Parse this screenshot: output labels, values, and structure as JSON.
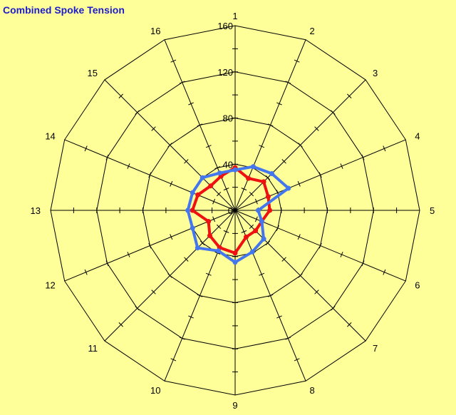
{
  "chart_data": {
    "type": "radar",
    "title": "Combined  Spoke Tension",
    "categories": [
      "1",
      "2",
      "3",
      "4",
      "5",
      "6",
      "7",
      "8",
      "9",
      "10",
      "11",
      "12",
      "13",
      "14",
      "15",
      "16"
    ],
    "rlim": [
      0,
      160
    ],
    "rticks": [
      0,
      40,
      80,
      120,
      160
    ],
    "grid": true,
    "series": [
      {
        "color": "#ee1111",
        "values": [
          37,
          30,
          35,
          31,
          30,
          25,
          25,
          25,
          37,
          35,
          31,
          25,
          37,
          35,
          30,
          32
        ]
      },
      {
        "color": "#4477ee",
        "values": [
          35,
          41,
          45,
          50,
          20,
          25,
          35,
          39,
          45,
          38,
          46,
          40,
          41,
          40,
          40,
          35
        ]
      }
    ]
  }
}
